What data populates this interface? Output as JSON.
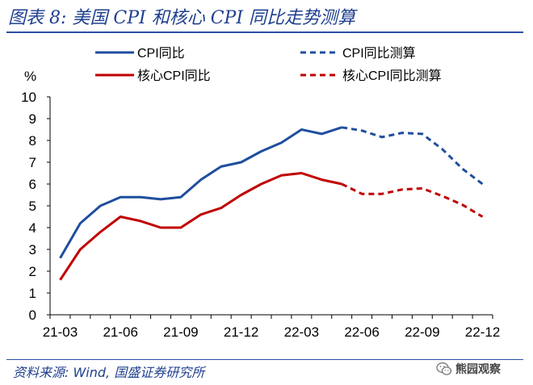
{
  "figure": {
    "title": "图表 8:  美国 CPI 和核心 CPI 同比走势测算",
    "source": "资料来源:  Wind,  国盛证券研究所",
    "watermark": "熊园观察",
    "watermark_icon": "wechat-icon"
  },
  "chart_data": {
    "type": "line",
    "title": "美国 CPI 和核心 CPI 同比走势测算",
    "ylabel": "%",
    "xlabel": "",
    "ylim": [
      0,
      10
    ],
    "yticks": [
      0,
      1,
      2,
      3,
      4,
      5,
      6,
      7,
      8,
      9,
      10
    ],
    "xticks": [
      "21-03",
      "21-06",
      "21-09",
      "21-12",
      "22-03",
      "22-06",
      "22-09",
      "22-12"
    ],
    "x": [
      "21-03",
      "21-04",
      "21-05",
      "21-06",
      "21-07",
      "21-08",
      "21-09",
      "21-10",
      "21-11",
      "21-12",
      "22-01",
      "22-02",
      "22-03",
      "22-04",
      "22-05",
      "22-06",
      "22-07",
      "22-08",
      "22-09",
      "22-10",
      "22-11",
      "22-12"
    ],
    "grid": false,
    "legend_position": "top",
    "series": [
      {
        "name": "CPI同比",
        "style": "solid",
        "color": "#1f4e9e",
        "x": [
          "21-03",
          "21-04",
          "21-05",
          "21-06",
          "21-07",
          "21-08",
          "21-09",
          "21-10",
          "21-11",
          "21-12",
          "22-01",
          "22-02",
          "22-03",
          "22-04",
          "22-05"
        ],
        "values": [
          2.6,
          4.2,
          5.0,
          5.4,
          5.4,
          5.3,
          5.4,
          6.2,
          6.8,
          7.0,
          7.5,
          7.9,
          8.5,
          8.3,
          8.6
        ]
      },
      {
        "name": "CPI同比测算",
        "style": "dashed",
        "color": "#1f4e9e",
        "x": [
          "22-05",
          "22-06",
          "22-07",
          "22-08",
          "22-09",
          "22-10",
          "22-11",
          "22-12"
        ],
        "values": [
          8.6,
          8.45,
          8.15,
          8.35,
          8.3,
          7.6,
          6.7,
          6.0
        ]
      },
      {
        "name": "核心CPI同比",
        "style": "solid",
        "color": "#c00000",
        "x": [
          "21-03",
          "21-04",
          "21-05",
          "21-06",
          "21-07",
          "21-08",
          "21-09",
          "21-10",
          "21-11",
          "21-12",
          "22-01",
          "22-02",
          "22-03",
          "22-04",
          "22-05"
        ],
        "values": [
          1.6,
          3.0,
          3.8,
          4.5,
          4.3,
          4.0,
          4.0,
          4.6,
          4.9,
          5.5,
          6.0,
          6.4,
          6.5,
          6.2,
          6.0
        ]
      },
      {
        "name": "核心CPI同比测算",
        "style": "dashed",
        "color": "#c00000",
        "x": [
          "22-05",
          "22-06",
          "22-07",
          "22-08",
          "22-09",
          "22-10",
          "22-11",
          "22-12"
        ],
        "values": [
          6.0,
          5.55,
          5.55,
          5.75,
          5.8,
          5.45,
          5.05,
          4.5
        ]
      }
    ]
  }
}
